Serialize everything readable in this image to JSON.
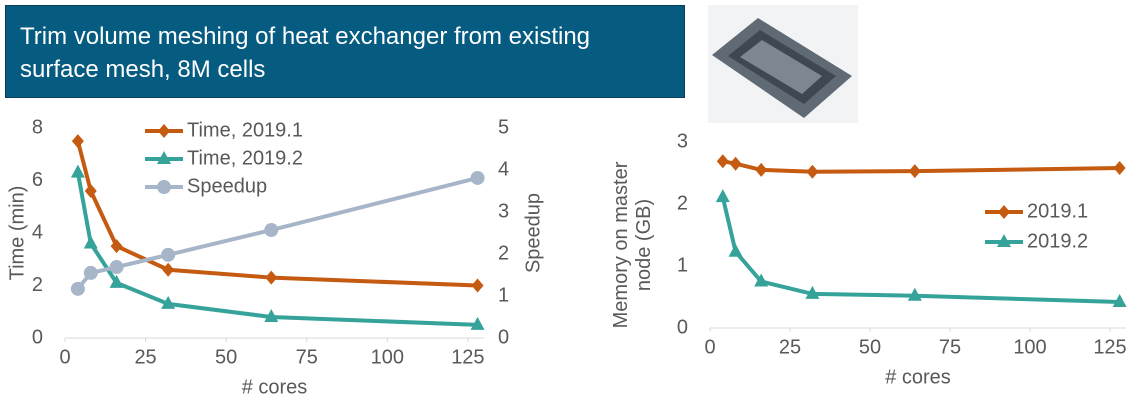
{
  "title": "Trim volume meshing of heat exchanger from existing surface mesh, 8M cells",
  "chart_data": [
    {
      "type": "line",
      "x_label": "# cores",
      "y_label": "Time (min)",
      "y2_label": "Speedup",
      "x": [
        4,
        8,
        16,
        32,
        64,
        128
      ],
      "xlim": [
        0,
        130
      ],
      "xticks": [
        0,
        25,
        50,
        75,
        100,
        125
      ],
      "ylim": [
        0,
        8
      ],
      "yticks": [
        0,
        2,
        4,
        6,
        8
      ],
      "y2lim": [
        0,
        5
      ],
      "y2ticks": [
        0,
        1,
        2,
        3,
        4,
        5
      ],
      "legend": "upper center",
      "series": [
        {
          "name": "Time, 2019.1",
          "color": "#c55a11",
          "marker": "diamond",
          "values": [
            7.5,
            5.6,
            3.5,
            2.6,
            2.3,
            2.0
          ]
        },
        {
          "name": "Time, 2019.2",
          "color": "#36a39b",
          "marker": "triangle",
          "values": [
            6.3,
            3.6,
            2.1,
            1.3,
            0.8,
            0.5
          ]
        },
        {
          "name": "Speedup",
          "color": "#a6b6c8",
          "marker": "circle",
          "axis": "y2",
          "values": [
            1.17,
            1.55,
            1.69,
            1.98,
            2.57,
            3.81
          ]
        }
      ]
    },
    {
      "type": "line",
      "x_label": "# cores",
      "y_label": "Memory on master node (GB)",
      "x": [
        4,
        8,
        16,
        32,
        64,
        128
      ],
      "xlim": [
        0,
        130
      ],
      "xticks": [
        0,
        25,
        50,
        75,
        100,
        125
      ],
      "ylim": [
        0,
        3
      ],
      "yticks": [
        0,
        1,
        2,
        3
      ],
      "legend": "center right",
      "series": [
        {
          "name": "2019.1",
          "color": "#c55a11",
          "marker": "diamond",
          "values": [
            2.69,
            2.65,
            2.55,
            2.52,
            2.53,
            2.58
          ]
        },
        {
          "name": "2019.2",
          "color": "#36a39b",
          "marker": "triangle",
          "values": [
            2.11,
            1.23,
            0.75,
            0.55,
            0.52,
            0.42
          ]
        }
      ]
    }
  ]
}
